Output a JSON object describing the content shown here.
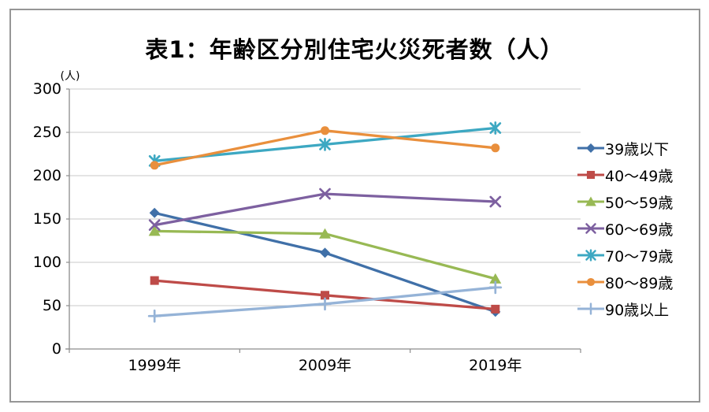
{
  "chart_data": {
    "type": "line",
    "title": "表1：年齢区分別住宅火災死者数（人）",
    "y_unit_label": "(人)",
    "xlabel": "",
    "ylabel": "",
    "categories": [
      "1999年",
      "2009年",
      "2019年"
    ],
    "y_ticks": [
      0,
      50,
      100,
      150,
      200,
      250,
      300
    ],
    "ylim": [
      0,
      300
    ],
    "grid": "horizontal",
    "legend_position": "right",
    "colors": {
      "gridline": "#c9c9c9",
      "axis": "#8c8c8c",
      "frame_border": "#969696"
    },
    "series": [
      {
        "name": "39歳以下",
        "marker": "diamond",
        "color": "#4070a8",
        "values": [
          157,
          111,
          43
        ]
      },
      {
        "name": "40～49歳",
        "marker": "square",
        "color": "#be4b48",
        "values": [
          79,
          62,
          46
        ]
      },
      {
        "name": "50～59歳",
        "marker": "triangle",
        "color": "#98b locally",
        "values": [
          136,
          133,
          81
        ]
      },
      {
        "name": "60～69歳",
        "marker": "x",
        "color": "#7d60a0",
        "values": [
          143,
          179,
          170
        ]
      },
      {
        "name": "70～79歳",
        "marker": "asterisk",
        "color": "#3da8c2",
        "values": [
          217,
          236,
          255
        ]
      },
      {
        "name": "80～89歳",
        "marker": "circle",
        "color": "#e98f3c",
        "values": [
          212,
          252,
          232
        ]
      },
      {
        "name": "90歳以上",
        "marker": "plus",
        "color": "#95b3d7",
        "values": [
          38,
          52,
          71
        ]
      }
    ]
  }
}
